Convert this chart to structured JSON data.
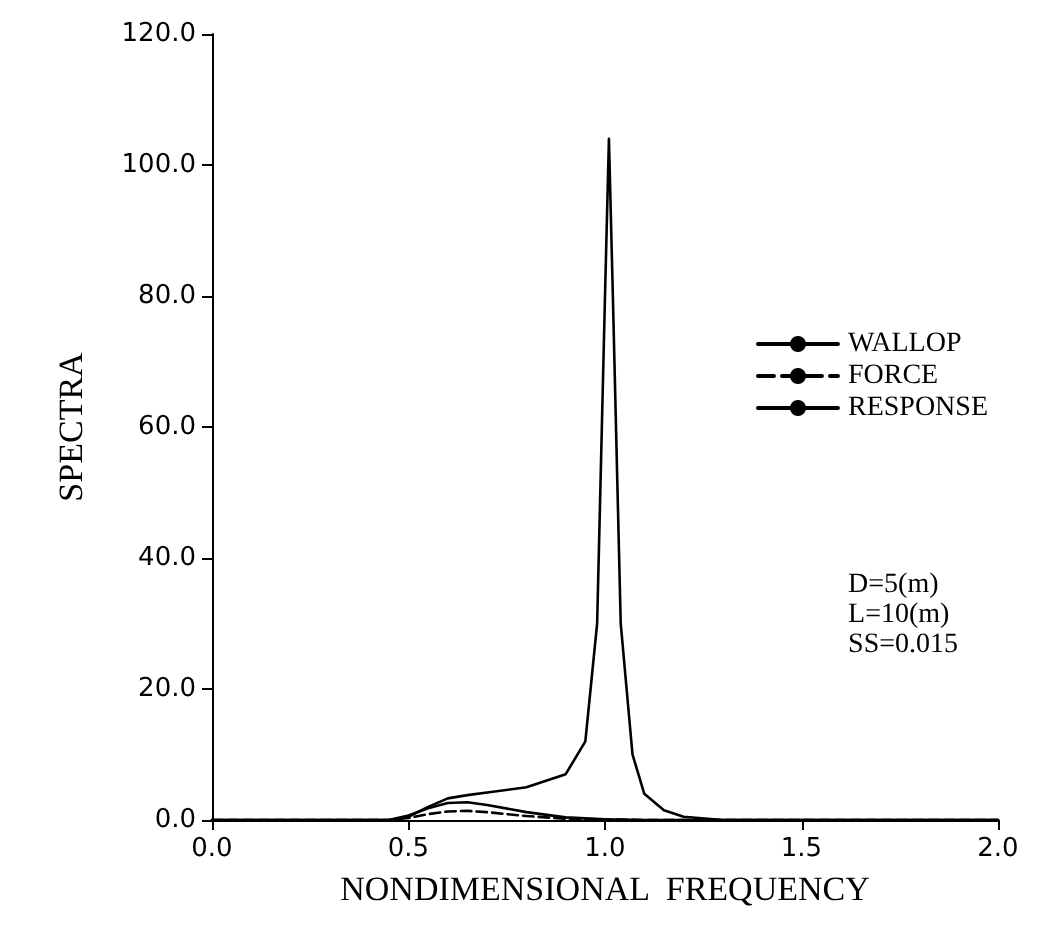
{
  "chart_data": {
    "type": "line",
    "xlabel": "NONDIMENSIONAL  FREQUENCY",
    "ylabel": "SPECTRA",
    "xlim": [
      0,
      2
    ],
    "ylim": [
      0,
      120
    ],
    "xticks": [
      {
        "value": 0,
        "label": "0.0"
      },
      {
        "value": 0.5,
        "label": "0.5"
      },
      {
        "value": 1,
        "label": "1.0"
      },
      {
        "value": 1.5,
        "label": "1.5"
      },
      {
        "value": 2,
        "label": "2.0"
      }
    ],
    "yticks": [
      {
        "value": 0,
        "label": "0.0"
      },
      {
        "value": 20,
        "label": "20.0"
      },
      {
        "value": 40,
        "label": "40.0"
      },
      {
        "value": 60,
        "label": "60.0"
      },
      {
        "value": 80,
        "label": "80.0"
      },
      {
        "value": 100,
        "label": "100.0"
      },
      {
        "value": 120,
        "label": "120.0"
      }
    ],
    "grid": false,
    "legend": "right",
    "marker": "none",
    "series": [
      {
        "name": "WALLOP",
        "color": "#000000",
        "line_style": "solid",
        "x": [
          0,
          0.45,
          0.5,
          0.55,
          0.6,
          0.65,
          0.7,
          0.8,
          0.9,
          1.0,
          1.1,
          2.0
        ],
        "values": [
          0,
          0,
          0.7,
          1.8,
          2.6,
          2.7,
          2.3,
          1.2,
          0.4,
          0.1,
          0,
          0
        ]
      },
      {
        "name": "FORCE",
        "color": "#000000",
        "line_style": "dashed",
        "x": [
          0,
          0.45,
          0.5,
          0.55,
          0.6,
          0.65,
          0.7,
          0.8,
          0.9,
          1.0,
          1.1,
          2.0
        ],
        "values": [
          0,
          0,
          0.3,
          0.9,
          1.3,
          1.4,
          1.2,
          0.6,
          0.2,
          0.1,
          0,
          0
        ]
      },
      {
        "name": "RESPONSE",
        "color": "#000000",
        "line_style": "solid",
        "x": [
          0,
          0.45,
          0.5,
          0.55,
          0.6,
          0.65,
          0.7,
          0.8,
          0.9,
          0.95,
          0.98,
          1.0,
          1.01,
          1.02,
          1.04,
          1.07,
          1.1,
          1.15,
          1.2,
          1.3,
          2.0
        ],
        "values": [
          0,
          0,
          0.5,
          2,
          3.3,
          3.8,
          4.2,
          5,
          7,
          12,
          30,
          80,
          104,
          80,
          30,
          10,
          4,
          1.5,
          0.5,
          0,
          0
        ]
      }
    ],
    "annotations": [
      "D=5(m)\nL=10(m)\nSS=0.015"
    ]
  }
}
